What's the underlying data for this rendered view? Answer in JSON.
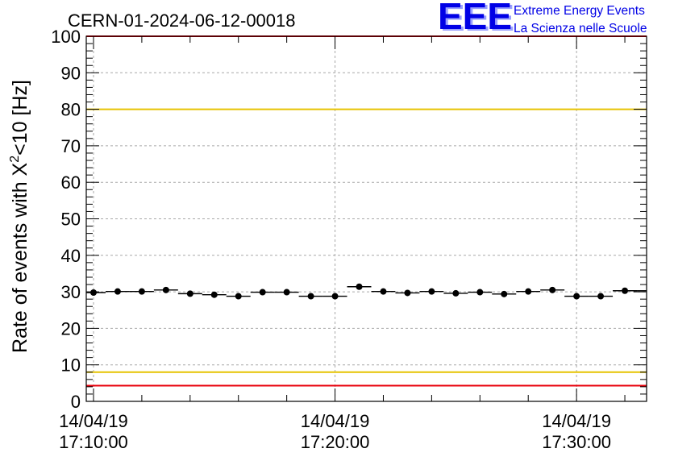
{
  "chart_data": {
    "type": "scatter",
    "title": "CERN-01-2024-06-12-00018",
    "ylabel": {
      "pre": "Rate of events with X",
      "sup": "2",
      "post": "<10 [Hz]"
    },
    "xlabel": "",
    "ylim": [
      0,
      100
    ],
    "y_ticks": [
      0,
      10,
      20,
      30,
      40,
      50,
      60,
      70,
      80,
      90,
      100
    ],
    "x_range_min": [
      9.7,
      32.9
    ],
    "x_ticks": [
      {
        "min": 10,
        "date": "14/04/19",
        "time": "17:10:00"
      },
      {
        "min": 20,
        "date": "14/04/19",
        "time": "17:20:00"
      },
      {
        "min": 30,
        "date": "14/04/19",
        "time": "17:30:00"
      }
    ],
    "x_half_width_min": 0.5,
    "grid": true,
    "ref_lines": [
      {
        "y": 100,
        "color": "#e8000b"
      },
      {
        "y": 80,
        "color": "#e6c300"
      },
      {
        "y": 8,
        "color": "#e6c300"
      },
      {
        "y": 4.3,
        "color": "#e8000b"
      }
    ],
    "series": [
      {
        "name": "",
        "color": "#000000",
        "x": [
          10,
          11,
          12,
          13,
          14,
          15,
          16,
          17,
          18,
          19,
          20,
          21,
          22,
          23,
          24,
          25,
          26,
          27,
          28,
          29,
          30,
          31,
          32,
          33
        ],
        "y": [
          29.8,
          30.1,
          30.1,
          30.5,
          29.5,
          29.2,
          28.8,
          29.9,
          29.9,
          28.8,
          28.8,
          31.4,
          30.1,
          29.7,
          30.1,
          29.6,
          29.9,
          29.4,
          30.1,
          30.5,
          28.8,
          28.8,
          30.3,
          30.3
        ]
      }
    ]
  },
  "logo": {
    "letters": "EEE",
    "line1": "Extreme Energy Events",
    "line2": "La Scienza nelle Scuole",
    "color": "#0000e6"
  }
}
